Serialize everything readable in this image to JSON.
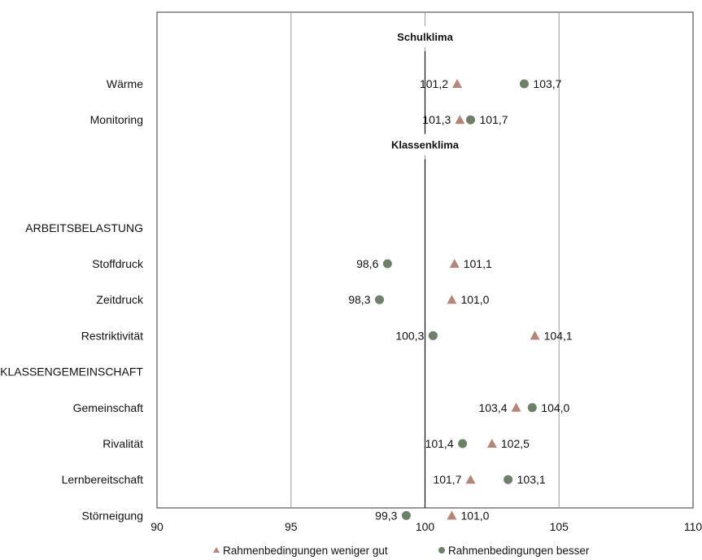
{
  "chart_data": {
    "type": "scatter",
    "xlim": [
      90,
      110
    ],
    "x_ticks": [
      "90",
      "95",
      "100",
      "105",
      "110"
    ],
    "grid": "vertical",
    "reference_line": 100,
    "sections": [
      {
        "name": "Schulklima",
        "row": 0
      },
      {
        "name": "Klassenklima",
        "row": 3
      }
    ],
    "rows": [
      {
        "label": "Wärme",
        "weniger_gut": 101.2,
        "weniger_gut_label": "101,2",
        "besser": 103.7,
        "besser_label": "103,7"
      },
      {
        "label": "Monitoring",
        "weniger_gut": 101.3,
        "weniger_gut_label": "101,3",
        "besser": 101.7,
        "besser_label": "101,7"
      },
      {
        "label": "",
        "weniger_gut": null,
        "besser": null
      },
      {
        "label": "",
        "weniger_gut": null,
        "besser": null
      },
      {
        "label": "ARBEITSBELASTUNG",
        "weniger_gut": null,
        "besser": null
      },
      {
        "label": "Stoffdruck",
        "weniger_gut": 101.1,
        "weniger_gut_label": "101,1",
        "besser": 98.6,
        "besser_label": "98,6"
      },
      {
        "label": "Zeitdruck",
        "weniger_gut": 101.0,
        "weniger_gut_label": "101,0",
        "besser": 98.3,
        "besser_label": "98,3"
      },
      {
        "label": "Restriktivität",
        "weniger_gut": 104.1,
        "weniger_gut_label": "104,1",
        "besser": 100.3,
        "besser_label": "100,3"
      },
      {
        "label": "KLASSENGEMEINSCHAFT",
        "weniger_gut": null,
        "besser": null
      },
      {
        "label": "Gemeinschaft",
        "weniger_gut": 103.4,
        "weniger_gut_label": "103,4",
        "besser": 104.0,
        "besser_label": "104,0"
      },
      {
        "label": "Rivalität",
        "weniger_gut": 102.5,
        "weniger_gut_label": "102,5",
        "besser": 101.4,
        "besser_label": "101,4"
      },
      {
        "label": "Lernbereitschaft",
        "weniger_gut": 101.7,
        "weniger_gut_label": "101,7",
        "besser": 103.1,
        "besser_label": "103,1"
      },
      {
        "label": "Störneigung",
        "weniger_gut": 101.0,
        "weniger_gut_label": "101,0",
        "besser": 99.3,
        "besser_label": "99,3"
      }
    ],
    "series": [
      {
        "key": "weniger_gut",
        "name": "Rahmenbedingungen weniger gut",
        "marker": "triangle",
        "color": "#b5857a"
      },
      {
        "key": "besser",
        "name": "Rahmenbedingungen besser",
        "marker": "circle",
        "color": "#6e8068"
      }
    ],
    "legend_position": "bottom"
  }
}
